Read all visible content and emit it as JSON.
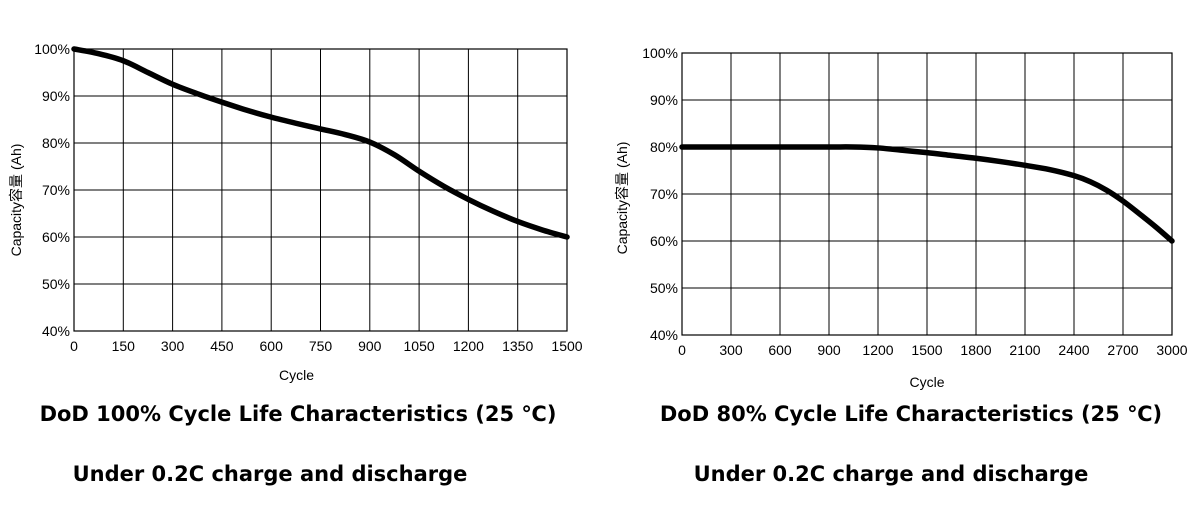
{
  "chart_data": [
    {
      "type": "line",
      "title": "DoD 100% Cycle Life Characteristics (25 ℃)",
      "subtitle": "Under 0.2C charge and discharge",
      "xlabel": "Cycle",
      "ylabel": "Capacity容量 (Ah)",
      "xlim": [
        0,
        1500
      ],
      "ylim": [
        40,
        100
      ],
      "xticks": [
        "0",
        "150",
        "300",
        "450",
        "600",
        "750",
        "900",
        "1050",
        "1200",
        "1350",
        "1500"
      ],
      "yticks": [
        "40%",
        "50%",
        "60%",
        "70%",
        "80%",
        "90%",
        "100%"
      ],
      "grid": true,
      "series": [
        {
          "x": [
            0,
            75,
            150,
            225,
            300,
            375,
            450,
            525,
            600,
            675,
            750,
            825,
            900,
            975,
            1050,
            1125,
            1200,
            1275,
            1350,
            1425,
            1500
          ],
          "y": [
            100,
            99,
            97.5,
            95,
            92.5,
            90.5,
            88.7,
            87,
            85.5,
            84.2,
            83,
            81.8,
            80.2,
            77.5,
            74,
            70.8,
            68,
            65.5,
            63.3,
            61.5,
            60
          ]
        }
      ]
    },
    {
      "type": "line",
      "title": "DoD 80% Cycle Life Characteristics (25 ℃)",
      "subtitle": "Under 0.2C charge and discharge",
      "xlabel": "Cycle",
      "ylabel": "Capacity容量 (Ah)",
      "xlim": [
        0,
        3000
      ],
      "ylim": [
        40,
        100
      ],
      "xticks": [
        "0",
        "300",
        "600",
        "900",
        "1200",
        "1500",
        "1800",
        "2100",
        "2400",
        "2700",
        "3000"
      ],
      "yticks": [
        "40%",
        "50%",
        "60%",
        "70%",
        "80%",
        "90%",
        "100%"
      ],
      "grid": true,
      "series": [
        {
          "x": [
            0,
            300,
            600,
            900,
            1050,
            1200,
            1350,
            1500,
            1650,
            1800,
            1950,
            2100,
            2250,
            2400,
            2500,
            2600,
            2700,
            2800,
            2900,
            3000
          ],
          "y": [
            80,
            80,
            80,
            80,
            80,
            79.8,
            79.3,
            78.8,
            78.2,
            77.6,
            76.9,
            76.1,
            75.2,
            73.9,
            72.6,
            70.8,
            68.5,
            65.8,
            63,
            60
          ]
        }
      ]
    }
  ]
}
